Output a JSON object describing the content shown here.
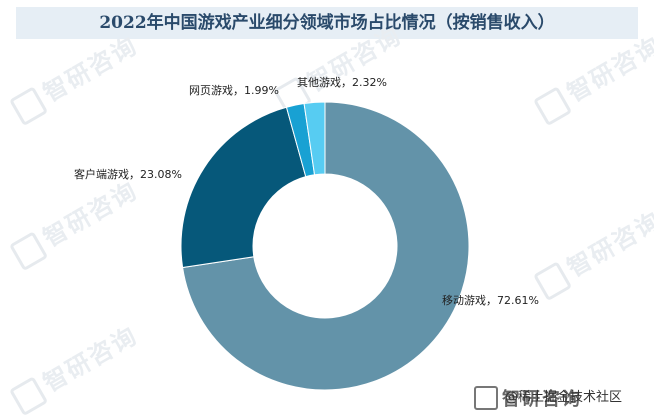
{
  "title": "2022年中国游戏产业细分领域市场占比情况（按销售收入）",
  "watermark": "智研咨询",
  "footer_overlay": "@稀土掘金技术社区",
  "chart_data": {
    "type": "pie",
    "donut": true,
    "title": "2022年中国游戏产业细分领域市场占比情况（按销售收入）",
    "categories": [
      "移动游戏",
      "客户端游戏",
      "网页游戏",
      "其他游戏"
    ],
    "values": [
      72.61,
      23.08,
      1.99,
      2.32
    ],
    "labels": [
      "移动游戏，72.61%",
      "客户端游戏，23.08%",
      "网页游戏，1.99%",
      "其他游戏，2.32%"
    ],
    "colors": [
      "#6393a9",
      "#06587a",
      "#18a1d3",
      "#57ccf2"
    ],
    "start_angle_deg": 0,
    "direction": "clockwise",
    "legend": "none"
  }
}
